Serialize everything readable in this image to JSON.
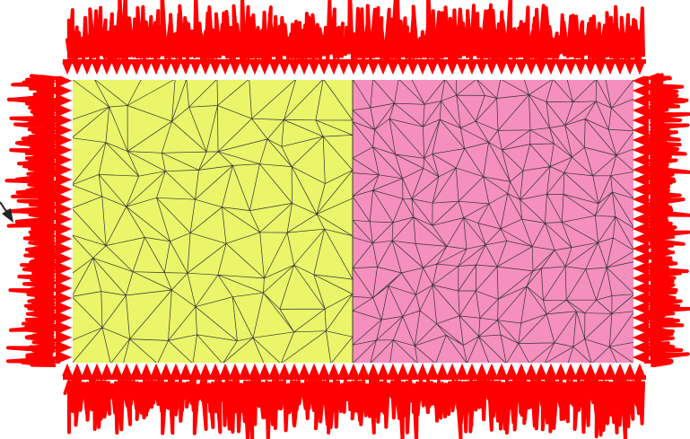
{
  "figure": {
    "description_type": "two-subdomain triangular mesh with fluctuating boundary loads",
    "regions": [
      {
        "name": "left-subdomain",
        "fill": "#eaf56a"
      },
      {
        "name": "right-subdomain",
        "fill": "#f58fbe"
      }
    ],
    "mesh_color": "#333333",
    "load_color": "#ff0000",
    "loaded_edges": [
      "top",
      "bottom",
      "left",
      "right"
    ],
    "arrow_color": "#222222"
  }
}
